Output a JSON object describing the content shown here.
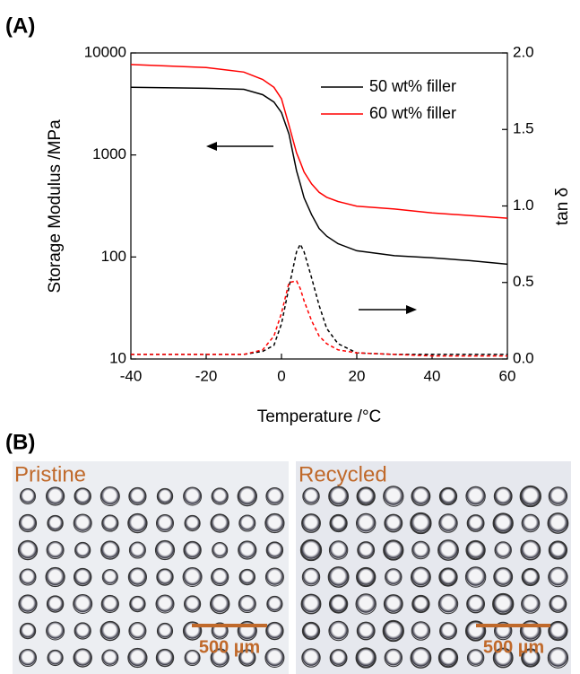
{
  "chart_data": {
    "type": "line",
    "x": [
      -40,
      -20,
      -10,
      -5,
      -2,
      0,
      2,
      4,
      5,
      6,
      8,
      10,
      12,
      15,
      20,
      30,
      40,
      50,
      60
    ],
    "series": [
      {
        "name": "50 wt% filler",
        "color": "#000000",
        "values": [
          4600,
          4500,
          4400,
          3900,
          3300,
          2600,
          1600,
          700,
          520,
          380,
          260,
          190,
          160,
          135,
          115,
          103,
          98,
          92,
          85
        ]
      },
      {
        "name": "60 wt% filler",
        "color": "#ff0000",
        "values": [
          7700,
          7200,
          6500,
          5500,
          4600,
          3550,
          1950,
          1050,
          850,
          680,
          520,
          430,
          385,
          350,
          315,
          295,
          270,
          255,
          240
        ]
      },
      {
        "color": "#000000",
        "dashed": true,
        "axis": "y2",
        "values": [
          0.03,
          0.03,
          0.03,
          0.05,
          0.09,
          0.23,
          0.47,
          0.7,
          0.75,
          0.7,
          0.53,
          0.35,
          0.2,
          0.1,
          0.04,
          0.03,
          0.03,
          0.03,
          0.03
        ]
      },
      {
        "color": "#ff0000",
        "dashed": true,
        "axis": "y2",
        "values": [
          0.03,
          0.03,
          0.03,
          0.06,
          0.15,
          0.3,
          0.5,
          0.51,
          0.46,
          0.38,
          0.25,
          0.15,
          0.1,
          0.06,
          0.04,
          0.03,
          0.02,
          0.02,
          0.02
        ]
      }
    ],
    "xlabel": "Temperature /°C",
    "ylabel": "Storage Modulus /MPa",
    "y2label": "tan δ",
    "xlim": [
      -40,
      60
    ],
    "xticks": [
      -40,
      -20,
      0,
      20,
      40,
      60
    ],
    "ylim": [
      10,
      10000
    ],
    "yticks": [
      10,
      100,
      1000,
      10000
    ],
    "yscale": "log",
    "y2lim": [
      0,
      2
    ],
    "y2ticks": [
      {
        "value": 0,
        "label": "0.0"
      },
      {
        "value": 0.5,
        "label": "0.5"
      },
      {
        "value": 1,
        "label": "1.0"
      },
      {
        "value": 1.5,
        "label": "1.5"
      },
      {
        "value": 2,
        "label": "2.0"
      }
    ],
    "legend": "upper right"
  },
  "panels": {
    "a_label": "(A)",
    "b_label": "(B)",
    "images": [
      {
        "label": "Pristine",
        "scale_bar": "500 µm"
      },
      {
        "label": "Recycled",
        "scale_bar": "500 µm"
      }
    ]
  }
}
